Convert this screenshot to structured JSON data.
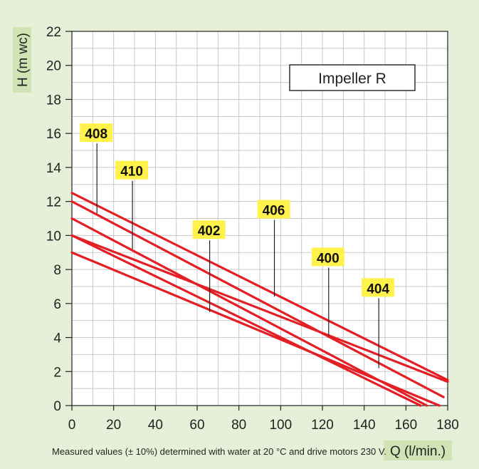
{
  "chart_data": {
    "type": "line",
    "title": "",
    "box_label": "Impeller R",
    "xlabel": "Q (l/min.)",
    "ylabel": "H (m wc)",
    "footnote": "Measured values (± 10%) determined with water at 20 °C and drive motors 230 V.",
    "xlim": [
      0,
      180
    ],
    "ylim": [
      0,
      22
    ],
    "xticks": [
      "0",
      "20",
      "40",
      "60",
      "80",
      "100",
      "120",
      "140",
      "160",
      "180"
    ],
    "yticks": [
      "0",
      "2",
      "4",
      "6",
      "8",
      "10",
      "12",
      "14",
      "16",
      "18",
      "20",
      "22"
    ],
    "grid": true,
    "series": [
      {
        "name": "400",
        "x": [
          0,
          178
        ],
        "y": [
          12.0,
          0.5
        ]
      },
      {
        "name": "402",
        "x": [
          0,
          170
        ],
        "y": [
          11.0,
          0.0
        ]
      },
      {
        "name": "404",
        "x": [
          0,
          180
        ],
        "y": [
          10.0,
          1.4
        ]
      },
      {
        "name": "406",
        "x": [
          0,
          180
        ],
        "y": [
          12.5,
          1.5
        ]
      },
      {
        "name": "408",
        "x": [
          0,
          167
        ],
        "y": [
          10.0,
          0.0
        ]
      },
      {
        "name": "410",
        "x": [
          0,
          176
        ],
        "y": [
          9.0,
          0.0
        ]
      }
    ],
    "annotations": [
      {
        "label": "408",
        "x": 12,
        "y": 16.0,
        "line_to_y": 11.3
      },
      {
        "label": "410",
        "x": 29,
        "y": 13.8,
        "line_to_y": 9.2
      },
      {
        "label": "402",
        "x": 66,
        "y": 10.3,
        "line_to_y": 5.5
      },
      {
        "label": "406",
        "x": 97,
        "y": 11.5,
        "line_to_y": 6.4
      },
      {
        "label": "400",
        "x": 123,
        "y": 8.7,
        "line_to_y": 4.1
      },
      {
        "label": "404",
        "x": 147,
        "y": 6.9,
        "line_to_y": 2.2
      }
    ],
    "colors": {
      "background": "#e6f0d8",
      "plot_bg": "#ffffff",
      "grid": "#c8c8c8",
      "series": "#e31e24",
      "label_bg": "#fff24a",
      "text": "#222222"
    }
  }
}
